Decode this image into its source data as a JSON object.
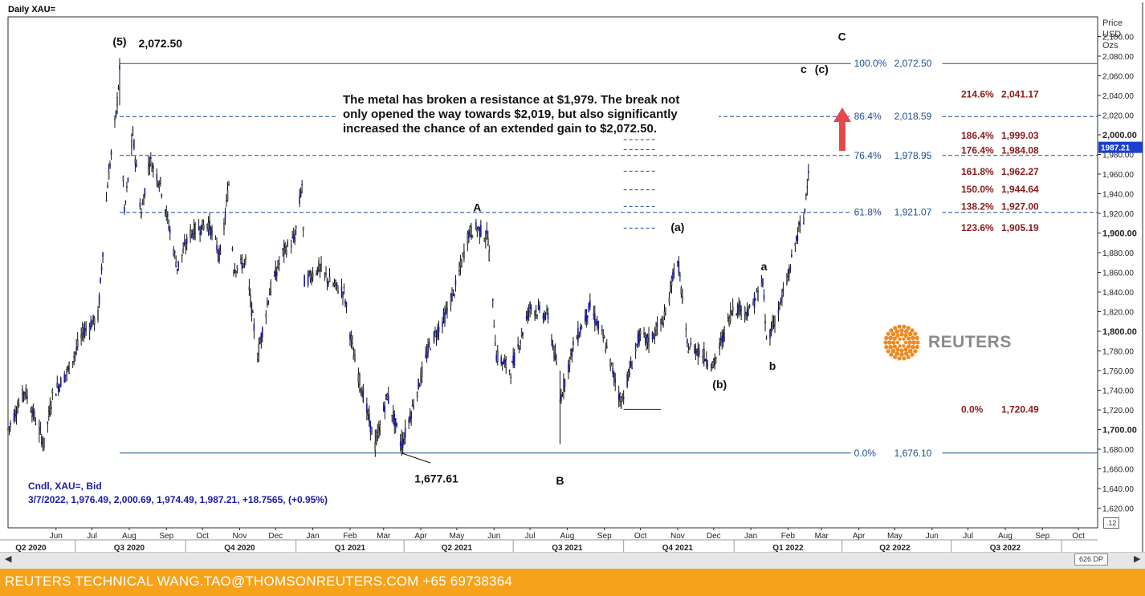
{
  "header": {
    "title": "Daily XAU="
  },
  "y_axis": {
    "header": [
      "Price",
      "USD",
      "Ozs"
    ],
    "corner_label": ".12"
  },
  "x_axis": {
    "zoom_label": "626 DP"
  },
  "footer": {
    "text": "REUTERS TECHNICAL  WANG.TAO@THOMSONREUTERS.COM  +65 69738364"
  },
  "logo": {
    "text": "REUTERS"
  },
  "info": {
    "series_label": "Cndl, XAU=, Bid",
    "ohlc": "3/7/2022, 1,976.49, 2,000.69, 1,974.49, 1,987.21, +18.7565, (+0.95%)"
  },
  "annotation": {
    "lines": [
      "The metal has broken a resistance at $1,979. The break not",
      "only opened the way towards $2,019, but also significantly",
      "increased the chance of an extended gain to $2,072.50."
    ]
  },
  "colors": {
    "candle": "#1a1aa6",
    "fib": "#1f4e8c",
    "ext": "#8b1a1a",
    "arrow": "#e8474a",
    "footer": "#f7a21b"
  },
  "chart_data": {
    "type": "candlestick",
    "title": "Daily XAU=",
    "ylabel": "Price USD Ozs",
    "ylim": [
      1600,
      2120
    ],
    "xlim": [
      "2020-05-06",
      "2022-10-31"
    ],
    "ytick_values": [
      1620,
      1640,
      1660,
      1680,
      1700,
      1720,
      1740,
      1760,
      1780,
      1800,
      1820,
      1840,
      1860,
      1880,
      1900,
      1920,
      1940,
      1960,
      1980,
      2000,
      2020,
      2040,
      2060,
      2080,
      2100
    ],
    "ytick_labels": [
      "1,620.00",
      "1,640.00",
      "1,660.00",
      "1,680.00",
      "1,700.00",
      "1,720.00",
      "1,740.00",
      "1,760.00",
      "1,780.00",
      "1,800.00",
      "1,820.00",
      "1,840.00",
      "1,860.00",
      "1,880.00",
      "1,900.00",
      "1,920.00",
      "1,940.00",
      "1,960.00",
      "1,980.00",
      "2,000.00",
      "2,020.00",
      "2,040.00",
      "2,060.00",
      "2,080.00",
      "2,100.00"
    ],
    "bold_yticks": [
      1700,
      1800,
      1900,
      2000
    ],
    "last_price": 1987.21,
    "month_ticks": [
      {
        "date": "2020-06-15",
        "label": "Jun"
      },
      {
        "date": "2020-07-15",
        "label": "Jul"
      },
      {
        "date": "2020-08-15",
        "label": "Aug"
      },
      {
        "date": "2020-09-15",
        "label": "Sep"
      },
      {
        "date": "2020-10-15",
        "label": "Oct"
      },
      {
        "date": "2020-11-15",
        "label": "Nov"
      },
      {
        "date": "2020-12-15",
        "label": "Dec"
      },
      {
        "date": "2021-01-15",
        "label": "Jan"
      },
      {
        "date": "2021-02-15",
        "label": "Feb"
      },
      {
        "date": "2021-03-15",
        "label": "Mar"
      },
      {
        "date": "2021-04-15",
        "label": "Apr"
      },
      {
        "date": "2021-05-15",
        "label": "May"
      },
      {
        "date": "2021-06-15",
        "label": "Jun"
      },
      {
        "date": "2021-07-15",
        "label": "Jul"
      },
      {
        "date": "2021-08-15",
        "label": "Aug"
      },
      {
        "date": "2021-09-15",
        "label": "Sep"
      },
      {
        "date": "2021-10-15",
        "label": "Oct"
      },
      {
        "date": "2021-11-15",
        "label": "Nov"
      },
      {
        "date": "2021-12-15",
        "label": "Dec"
      },
      {
        "date": "2022-01-15",
        "label": "Jan"
      },
      {
        "date": "2022-02-15",
        "label": "Feb"
      },
      {
        "date": "2022-03-15",
        "label": "Mar"
      },
      {
        "date": "2022-04-15",
        "label": "Apr"
      },
      {
        "date": "2022-05-15",
        "label": "May"
      },
      {
        "date": "2022-06-15",
        "label": "Jun"
      },
      {
        "date": "2022-07-15",
        "label": "Jul"
      },
      {
        "date": "2022-08-15",
        "label": "Aug"
      },
      {
        "date": "2022-09-15",
        "label": "Sep"
      },
      {
        "date": "2022-10-15",
        "label": "Oct"
      }
    ],
    "quarter_labels": [
      {
        "date": "2020-05-25",
        "label": "Q2 2020"
      },
      {
        "date": "2020-08-15",
        "label": "Q3 2020"
      },
      {
        "date": "2020-11-15",
        "label": "Q4 2020"
      },
      {
        "date": "2021-02-15",
        "label": "Q1 2021"
      },
      {
        "date": "2021-05-15",
        "label": "Q2 2021"
      },
      {
        "date": "2021-08-15",
        "label": "Q3 2021"
      },
      {
        "date": "2021-11-15",
        "label": "Q4 2021"
      },
      {
        "date": "2022-02-15",
        "label": "Q1 2022"
      },
      {
        "date": "2022-05-15",
        "label": "Q2 2022"
      },
      {
        "date": "2022-08-15",
        "label": "Q3 2022"
      }
    ],
    "quarter_dividers": [
      "2020-07-01",
      "2020-10-01",
      "2021-01-01",
      "2021-04-01",
      "2021-07-01",
      "2021-10-01",
      "2022-01-01",
      "2022-04-01",
      "2022-07-01",
      "2022-10-01"
    ],
    "price_path": [
      [
        "2020-05-06",
        1700
      ],
      [
        "2020-05-20",
        1740
      ],
      [
        "2020-06-05",
        1685
      ],
      [
        "2020-06-12",
        1735
      ],
      [
        "2020-06-25",
        1760
      ],
      [
        "2020-07-08",
        1800
      ],
      [
        "2020-07-20",
        1815
      ],
      [
        "2020-07-28",
        1950
      ],
      [
        "2020-08-04",
        2020
      ],
      [
        "2020-08-07",
        2065
      ],
      [
        "2020-08-11",
        1920
      ],
      [
        "2020-08-18",
        2000
      ],
      [
        "2020-08-25",
        1920
      ],
      [
        "2020-09-01",
        1975
      ],
      [
        "2020-09-10",
        1950
      ],
      [
        "2020-09-24",
        1865
      ],
      [
        "2020-10-05",
        1900
      ],
      [
        "2020-10-20",
        1910
      ],
      [
        "2020-10-30",
        1875
      ],
      [
        "2020-11-06",
        1950
      ],
      [
        "2020-11-10",
        1865
      ],
      [
        "2020-11-20",
        1870
      ],
      [
        "2020-11-30",
        1775
      ],
      [
        "2020-12-10",
        1840
      ],
      [
        "2020-12-21",
        1880
      ],
      [
        "2020-12-31",
        1895
      ],
      [
        "2021-01-06",
        1950
      ],
      [
        "2021-01-08",
        1850
      ],
      [
        "2021-01-20",
        1865
      ],
      [
        "2021-01-29",
        1850
      ],
      [
        "2021-02-10",
        1840
      ],
      [
        "2021-02-18",
        1775
      ],
      [
        "2021-02-26",
        1735
      ],
      [
        "2021-03-08",
        1683
      ],
      [
        "2021-03-18",
        1735
      ],
      [
        "2021-03-30",
        1683
      ],
      [
        "2021-04-12",
        1740
      ],
      [
        "2021-04-22",
        1785
      ],
      [
        "2021-05-05",
        1815
      ],
      [
        "2021-05-14",
        1845
      ],
      [
        "2021-05-25",
        1900
      ],
      [
        "2021-06-01",
        1905
      ],
      [
        "2021-06-10",
        1895
      ],
      [
        "2021-06-17",
        1775
      ],
      [
        "2021-06-29",
        1760
      ],
      [
        "2021-07-15",
        1825
      ],
      [
        "2021-07-30",
        1815
      ],
      [
        "2021-08-06",
        1765
      ],
      [
        "2021-08-09",
        1730
      ],
      [
        "2021-08-20",
        1785
      ],
      [
        "2021-09-03",
        1825
      ],
      [
        "2021-09-15",
        1790
      ],
      [
        "2021-09-29",
        1728
      ],
      [
        "2021-10-14",
        1795
      ],
      [
        "2021-10-22",
        1790
      ],
      [
        "2021-11-05",
        1815
      ],
      [
        "2021-11-12",
        1865
      ],
      [
        "2021-11-16",
        1865
      ],
      [
        "2021-11-23",
        1785
      ],
      [
        "2021-12-03",
        1780
      ],
      [
        "2021-12-15",
        1765
      ],
      [
        "2021-12-31",
        1825
      ],
      [
        "2022-01-14",
        1820
      ],
      [
        "2022-01-25",
        1850
      ],
      [
        "2022-01-28",
        1790
      ],
      [
        "2022-02-08",
        1825
      ],
      [
        "2022-02-15",
        1855
      ],
      [
        "2022-02-24",
        1905
      ],
      [
        "2022-02-28",
        1910
      ],
      [
        "2022-03-04",
        1968
      ],
      [
        "2022-03-07",
        1987
      ]
    ],
    "fib_retracements": [
      {
        "label": "100.0%",
        "value_label": "2,072.50",
        "price": 2072.5,
        "style": "solid"
      },
      {
        "label": "86.4%",
        "value_label": "2,018.59",
        "price": 2018.59,
        "style": "dashed"
      },
      {
        "label": "76.4%",
        "value_label": "1,978.95",
        "price": 1978.95,
        "style": "dashed"
      },
      {
        "label": "61.8%",
        "value_label": "1,921.07",
        "price": 1921.07,
        "style": "dashed"
      },
      {
        "label": "0.0%",
        "value_label": "1,676.10",
        "price": 1676.1,
        "style": "solid"
      }
    ],
    "fib_extensions": [
      {
        "label": "214.6%",
        "value": "2,041.17",
        "price": 2041.17
      },
      {
        "label": "186.4%",
        "value": "1,999.03",
        "price": 1999.03
      },
      {
        "label": "176.4%",
        "value": "1,984.08",
        "price": 1984.08
      },
      {
        "label": "161.8%",
        "value": "1,962.27",
        "price": 1962.27
      },
      {
        "label": "150.0%",
        "value": "1,944.64",
        "price": 1944.64
      },
      {
        "label": "138.2%",
        "value": "1,927.00",
        "price": 1927.0
      },
      {
        "label": "123.6%",
        "value": "1,905.19",
        "price": 1905.19
      },
      {
        "label": "0.0%",
        "value": "1,720.49",
        "price": 1720.49
      }
    ],
    "wave_labels": [
      {
        "text": "(5)",
        "date": "2020-08-07",
        "price": 2091
      },
      {
        "text": "2,072.50",
        "date": "2020-09-10",
        "price": 2089
      },
      {
        "text": "A",
        "date": "2021-06-01",
        "price": 1922
      },
      {
        "text": "B",
        "date": "2021-08-09",
        "price": 1644
      },
      {
        "text": "1,677.61",
        "date": "2021-04-28",
        "price": 1646
      },
      {
        "text": "(a)",
        "date": "2021-11-15",
        "price": 1902
      },
      {
        "text": "(b)",
        "date": "2021-12-20",
        "price": 1742
      },
      {
        "text": "a",
        "date": "2022-01-26",
        "price": 1862
      },
      {
        "text": "b",
        "date": "2022-02-02",
        "price": 1761
      },
      {
        "text": "c",
        "date": "2022-02-28",
        "price": 2063
      },
      {
        "text": "(c)",
        "date": "2022-03-15",
        "price": 2063
      },
      {
        "text": "C",
        "date": "2022-04-01",
        "price": 2096
      }
    ]
  }
}
